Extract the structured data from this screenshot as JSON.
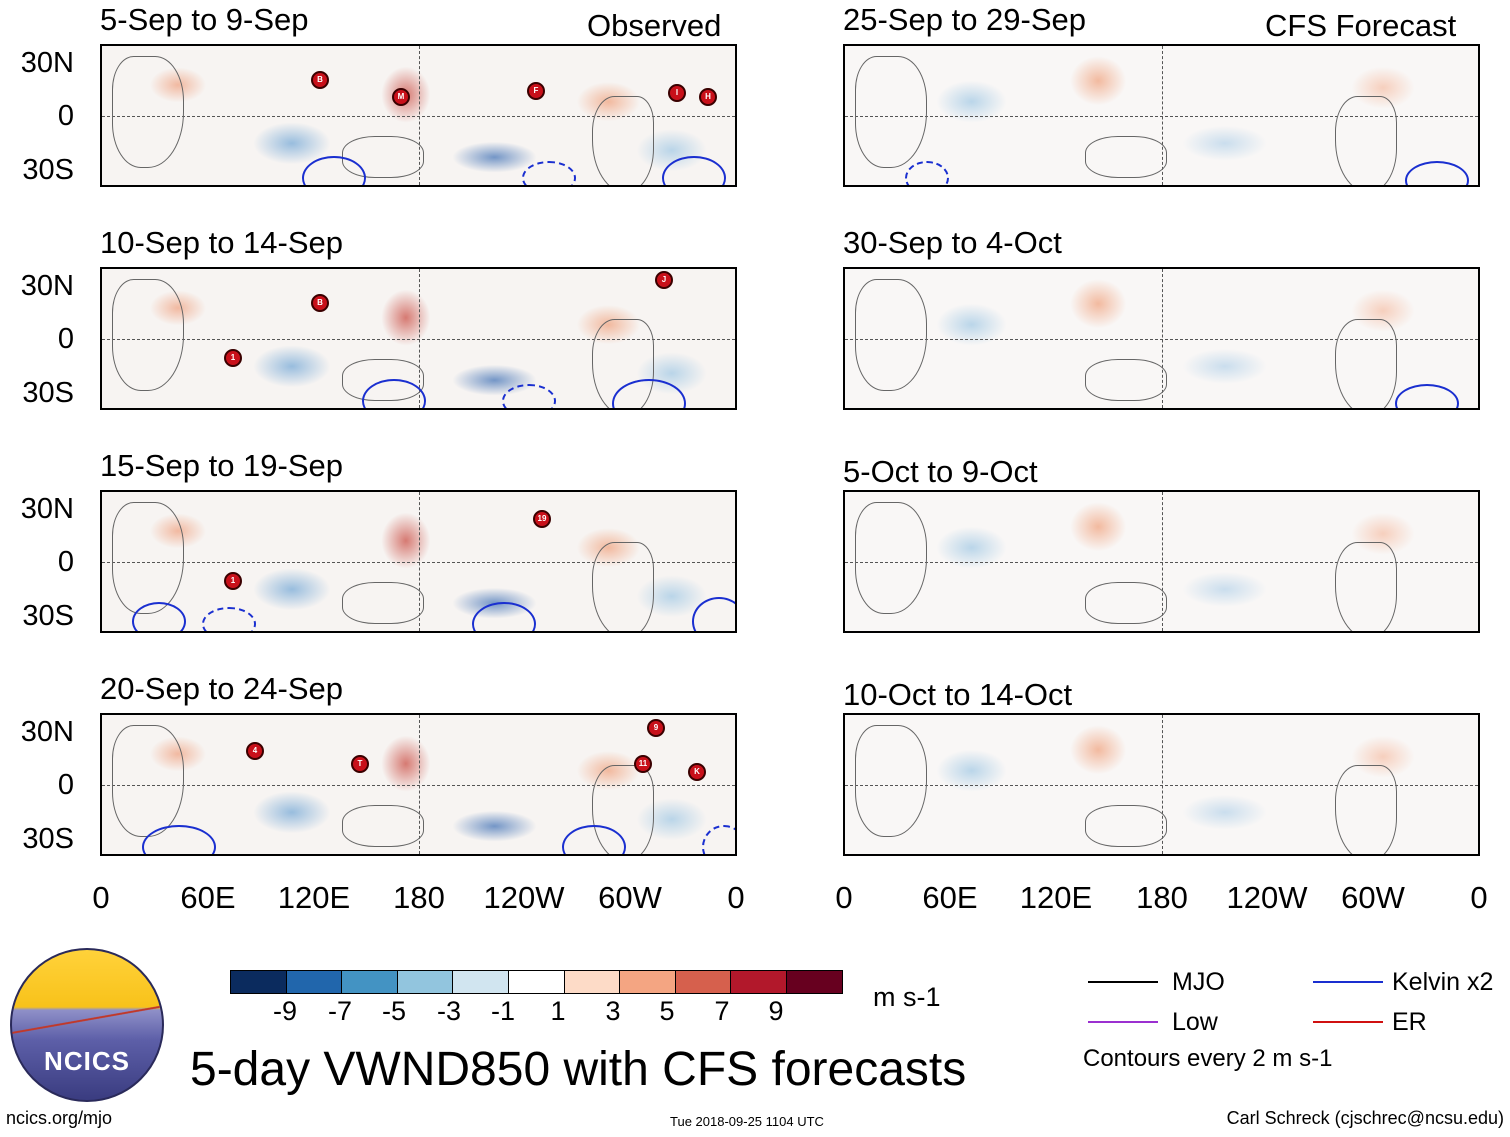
{
  "figure": {
    "main_title": "5-day VWND850 with CFS forecasts",
    "source_url": "ncics.org/mjo",
    "timestamp": "Tue 2018-09-25 1104 UTC",
    "author": "Carl Schreck (cjschrec@ncsu.edu)",
    "logo_text": "NCICS",
    "observed_label": "Observed",
    "forecast_label": "CFS Forecast"
  },
  "panels_observed": [
    {
      "title": "5-Sep to 9-Sep"
    },
    {
      "title": "10-Sep to 14-Sep"
    },
    {
      "title": "15-Sep to 19-Sep"
    },
    {
      "title": "20-Sep to 24-Sep"
    }
  ],
  "panels_forecast": [
    {
      "title": "25-Sep to 29-Sep"
    },
    {
      "title": "30-Sep to 4-Oct"
    },
    {
      "title": "5-Oct to 9-Oct"
    },
    {
      "title": "10-Oct to 14-Oct"
    }
  ],
  "axes": {
    "y_ticks": [
      "30N",
      "0",
      "30S"
    ],
    "x_ticks": [
      "0",
      "60E",
      "120E",
      "180",
      "120W",
      "60W",
      "0"
    ]
  },
  "colorbar": {
    "units": "m s-1",
    "tick_labels": [
      "-9",
      "-7",
      "-5",
      "-3",
      "-1",
      "1",
      "3",
      "5",
      "7",
      "9"
    ],
    "colors": [
      "#0b2b5e",
      "#2166ac",
      "#4393c3",
      "#92c5de",
      "#d1e5f0",
      "#ffffff",
      "#fddbc7",
      "#f4a582",
      "#d6604d",
      "#b2182b",
      "#67001f"
    ]
  },
  "legend": {
    "items": [
      {
        "label": "MJO",
        "color": "#000000"
      },
      {
        "label": "Kelvin x2",
        "color": "#1a2fd0"
      },
      {
        "label": "Low",
        "color": "#9b30d0"
      },
      {
        "label": "ER",
        "color": "#d01010"
      }
    ],
    "contour_note": "Contours every 2 m s-1"
  },
  "storms": {
    "p1": [
      "B",
      "M",
      "F",
      "I",
      "H"
    ],
    "p2": [
      "B",
      "1",
      "J"
    ],
    "p3": [
      "1",
      "19"
    ],
    "p4": [
      "4",
      "T",
      "9",
      "11",
      "K"
    ]
  }
}
